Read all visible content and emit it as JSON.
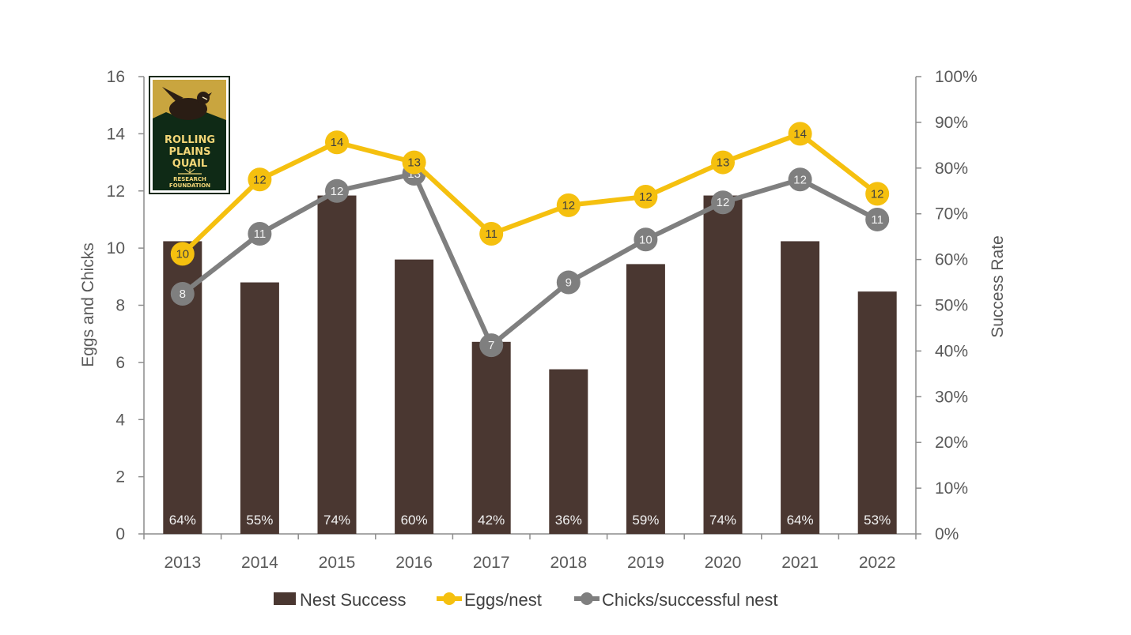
{
  "chart_data": {
    "type": "bar+line",
    "title": "",
    "categories": [
      "2013",
      "2014",
      "2015",
      "2016",
      "2017",
      "2018",
      "2019",
      "2020",
      "2021",
      "2022"
    ],
    "left_axis": {
      "label": "Eggs and Chicks",
      "range": [
        0,
        16
      ],
      "ticks": [
        "0",
        "2",
        "4",
        "6",
        "8",
        "10",
        "12",
        "14",
        "16"
      ]
    },
    "right_axis": {
      "label": "Success Rate",
      "range": [
        0,
        100
      ],
      "ticks": [
        "0%",
        "10%",
        "20%",
        "30%",
        "40%",
        "50%",
        "60%",
        "70%",
        "80%",
        "90%",
        "100%"
      ]
    },
    "series": [
      {
        "name": "Nest Success",
        "kind": "bar",
        "axis": "right",
        "color": "#4a3731",
        "values": [
          64,
          55,
          74,
          60,
          42,
          36,
          59,
          74,
          64,
          53
        ],
        "labels": [
          "64%",
          "55%",
          "74%",
          "60%",
          "42%",
          "36%",
          "59%",
          "74%",
          "64%",
          "53%"
        ]
      },
      {
        "name": "Eggs/nest",
        "kind": "line",
        "axis": "left",
        "color": "#f5c00f",
        "values": [
          9.8,
          12.4,
          13.7,
          13.0,
          10.5,
          11.5,
          11.8,
          13.0,
          14.0,
          11.9
        ],
        "labels": [
          "10",
          "12",
          "14",
          "13",
          "11",
          "12",
          "12",
          "13",
          "14",
          "12"
        ]
      },
      {
        "name": "Chicks/successful nest",
        "kind": "line",
        "axis": "left",
        "color": "#7f7f7f",
        "values": [
          8.4,
          10.5,
          12.0,
          12.6,
          6.6,
          8.8,
          10.3,
          11.6,
          12.4,
          11.0
        ],
        "labels": [
          "8",
          "11",
          "12",
          "13",
          "7",
          "9",
          "10",
          "12",
          "12",
          "11"
        ]
      }
    ],
    "legend": {
      "position": "bottom"
    }
  },
  "logo": {
    "line1": "ROLLING",
    "line2": "PLAINS",
    "line3": "QUAIL",
    "line4": "RESEARCH",
    "line5": "FOUNDATION"
  }
}
